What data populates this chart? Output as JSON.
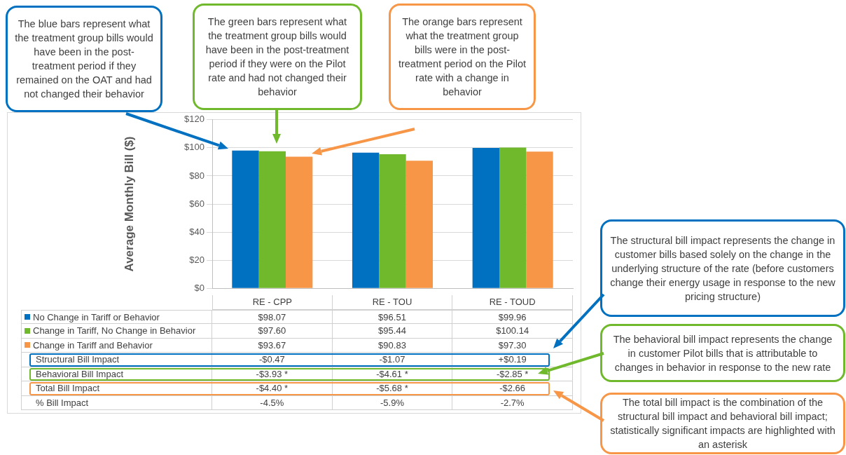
{
  "chart_data": {
    "type": "bar",
    "ylabel": "Average Monthly Bill ($)",
    "categories": [
      "RE - CPP",
      "RE - TOU",
      "RE - TOUD"
    ],
    "series": [
      {
        "name": "No Change in Tariff or Behavior",
        "color": "#0070c0",
        "values": [
          98.07,
          96.51,
          99.96
        ],
        "value_labels": [
          "$98.07",
          "$96.51",
          "$99.96"
        ]
      },
      {
        "name": "Change in Tariff, No Change in Behavior",
        "color": "#70b82c",
        "values": [
          97.6,
          95.44,
          100.14
        ],
        "value_labels": [
          "$97.60",
          "$95.44",
          "$100.14"
        ]
      },
      {
        "name": "Change in Tariff and Behavior",
        "color": "#f79646",
        "values": [
          93.67,
          90.83,
          97.3
        ],
        "value_labels": [
          "$93.67",
          "$90.83",
          "$97.30"
        ]
      }
    ],
    "ylim": [
      0,
      120
    ],
    "yticks": [
      {
        "value": 0,
        "label": "$0"
      },
      {
        "value": 20,
        "label": "$20"
      },
      {
        "value": 40,
        "label": "$40"
      },
      {
        "value": 60,
        "label": "$60"
      },
      {
        "value": 80,
        "label": "$80"
      },
      {
        "value": 100,
        "label": "$100"
      },
      {
        "value": 120,
        "label": "$120"
      }
    ],
    "grid": "y",
    "legend": "bottom",
    "annotations": [
      "The blue bars represent what the treatment group bills would have been in the post-treatment period if they remained on the OAT and had not changed their behavior",
      "The green bars represent what the treatment group bills would have been in the post-treatment period if they were on the Pilot rate and had not changed their behavior",
      "The orange bars represent what the treatment group bills were in the post-treatment period on the Pilot rate with a change in behavior",
      "The structural bill impact represents the change in customer bills based solely on the change in the underlying structure of the rate (before customers change their energy usage in response to the new pricing structure)",
      "The behavioral bill impact represents the change in customer Pilot bills that is attributable to changes in behavior in response to the new rate",
      "The total bill impact is the combination of the structural bill impact and behavioral bill impact; statistically significant impacts are highlighted with an asterisk",
      "Structural Bill Impact",
      "-$0.47",
      "-$1.07",
      "+$0.19",
      "Behavioral Bill Impact",
      "-$3.93 *",
      "-$4.61 *",
      "-$2.85 *",
      "Total Bill Impact",
      "-$4.40 *",
      "-$5.68 *",
      "-$2.66",
      "% Bill Impact",
      "-4.5%",
      "-5.9%",
      "-2.7%"
    ]
  }
}
